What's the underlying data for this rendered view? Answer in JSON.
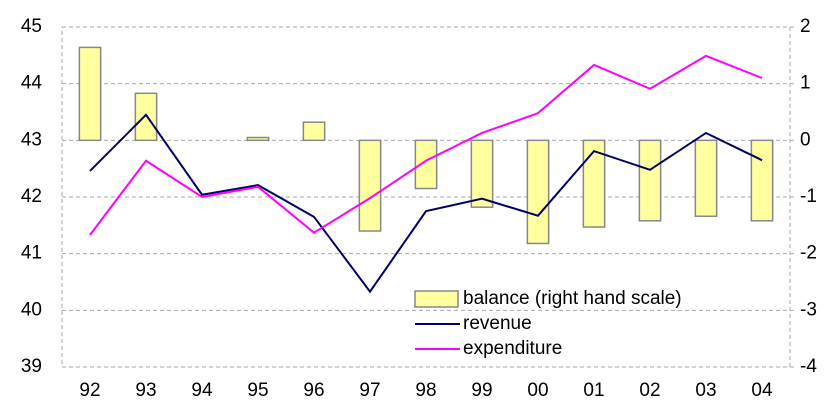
{
  "chart_data": {
    "type": "bar",
    "categories": [
      "92",
      "93",
      "94",
      "95",
      "96",
      "97",
      "98",
      "99",
      "00",
      "01",
      "02",
      "03",
      "04"
    ],
    "ylim": [
      39,
      45
    ],
    "yticks": [
      39,
      40,
      41,
      42,
      43,
      44,
      45
    ],
    "y2lim": [
      -4,
      2
    ],
    "y2ticks": [
      -4,
      -3,
      -2,
      -1,
      0,
      1,
      2
    ],
    "grid": true,
    "legend": "lower right",
    "series": [
      {
        "name": "balance (right hand scale)",
        "type": "bar",
        "axis": "y2",
        "color": "#ffffa0",
        "values": [
          1.64,
          0.83,
          0,
          0.05,
          0.32,
          -1.6,
          -0.85,
          -1.18,
          -1.82,
          -1.53,
          -1.42,
          -1.34,
          -1.42
        ]
      },
      {
        "name": "revenue",
        "type": "line",
        "color": "#000066",
        "values": [
          42.46,
          43.45,
          42.04,
          42.21,
          41.65,
          40.33,
          41.75,
          41.97,
          41.67,
          42.81,
          42.48,
          43.13,
          42.65
        ]
      },
      {
        "name": "expenditure",
        "type": "line",
        "color": "#ff00ff",
        "values": [
          41.33,
          42.64,
          42.0,
          42.18,
          41.37,
          41.98,
          42.64,
          43.13,
          43.48,
          44.33,
          43.91,
          44.49,
          44.1
        ]
      }
    ]
  }
}
